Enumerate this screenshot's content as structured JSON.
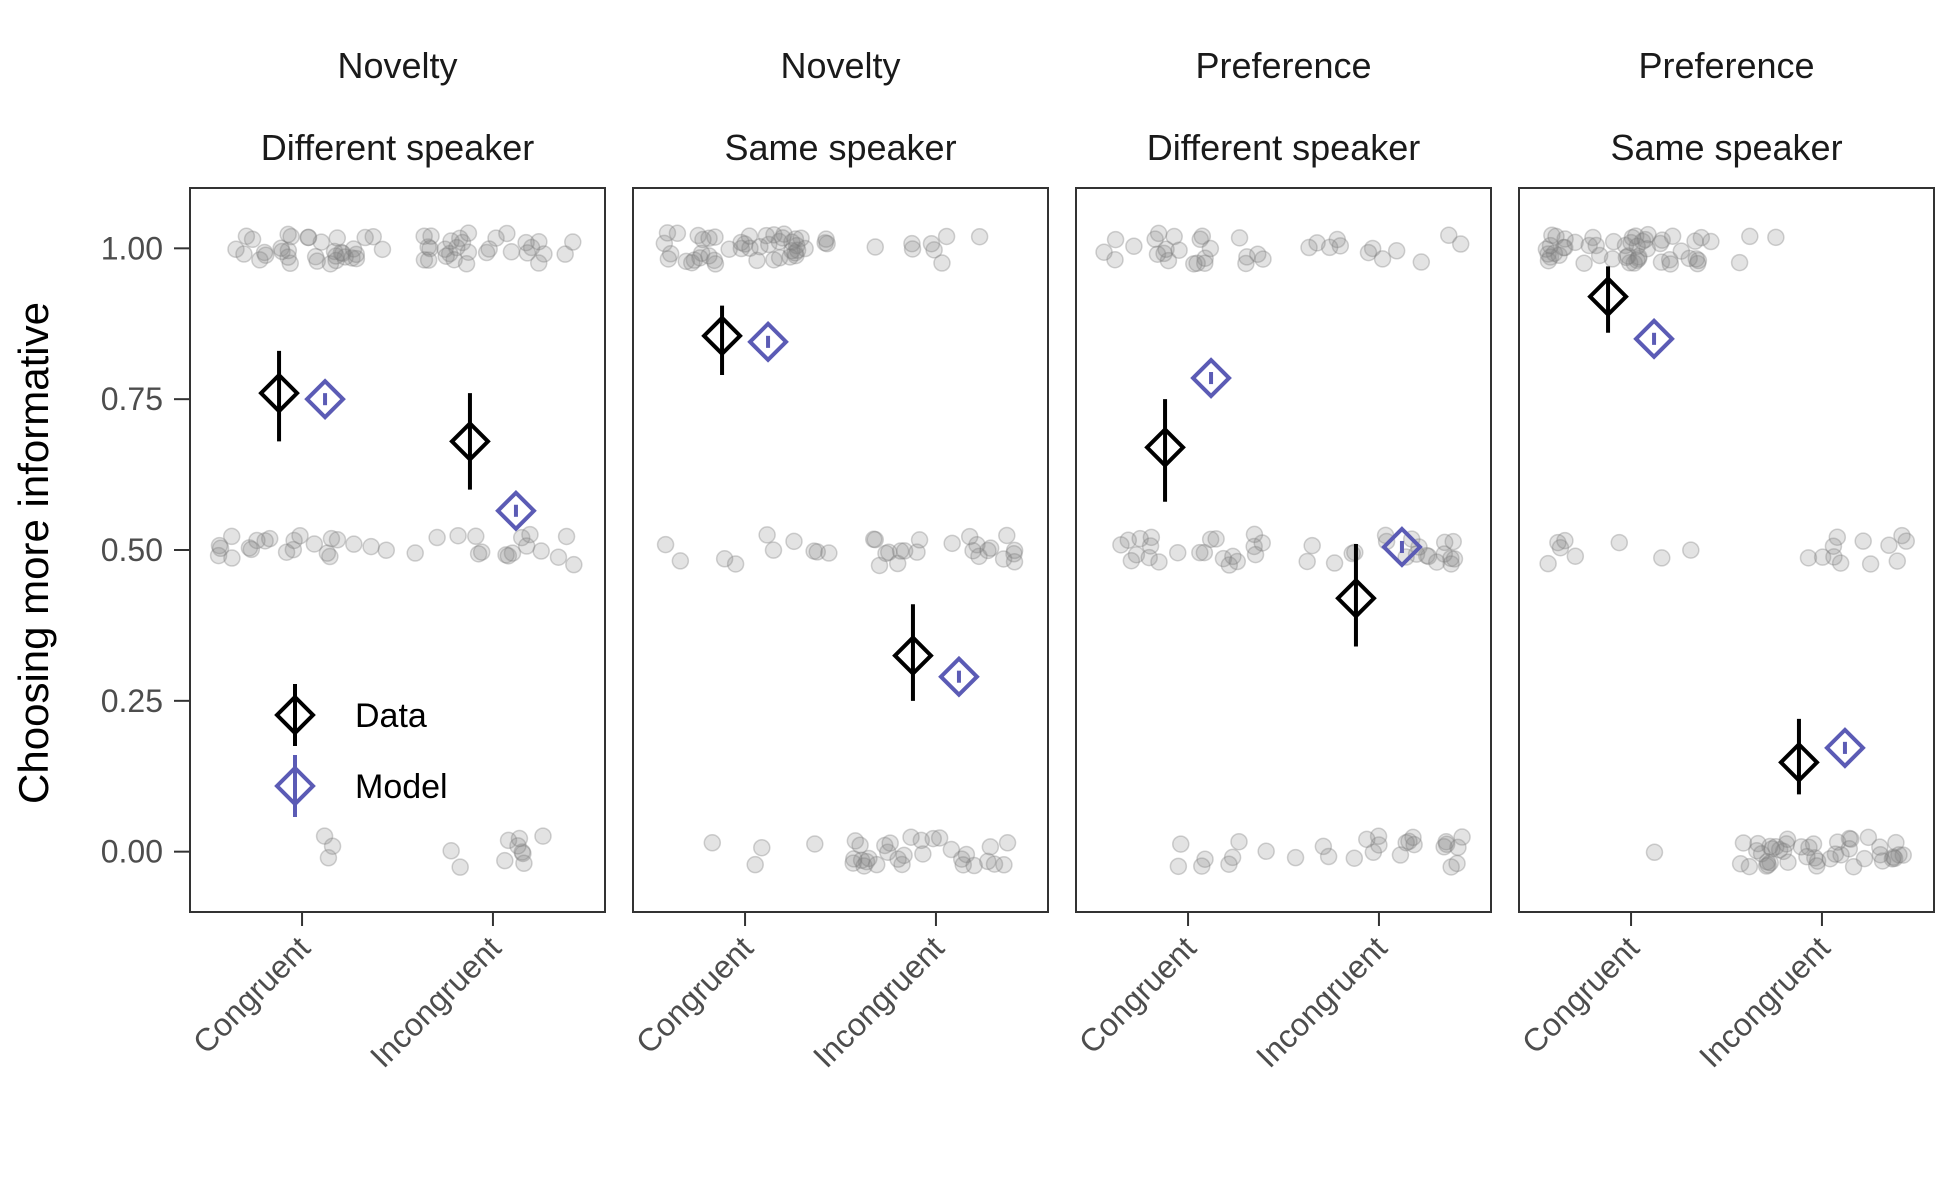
{
  "chart_data": {
    "type": "scatter",
    "ylabel": "Choosing more informative",
    "xlabel": "",
    "ylim": [
      -0.1,
      1.1
    ],
    "y_ticks": [
      "0.00",
      "0.25",
      "0.50",
      "0.75",
      "1.00"
    ],
    "categories": [
      "Congruent",
      "Incongruent"
    ],
    "legend": {
      "entries": [
        "Data",
        "Model"
      ],
      "placement": "bottom-left of first panel"
    },
    "colors": {
      "data": "#000000",
      "model": "#5b5bb5",
      "points": "#7f7f7f"
    },
    "panels": [
      {
        "facet_row1": "Novelty",
        "facet_row2": "Different speaker",
        "Data": {
          "mean": [
            0.76,
            0.68
          ],
          "lower": [
            0.68,
            0.6
          ],
          "upper": [
            0.83,
            0.76
          ]
        },
        "Model": {
          "mean": [
            0.75,
            0.565
          ],
          "lower": [
            0.74,
            0.555
          ],
          "upper": [
            0.76,
            0.575
          ]
        },
        "points": {
          "Congruent": {
            "0": 3,
            "0.5": 22,
            "1": 34
          },
          "Incongruent": {
            "0": 10,
            "0.5": 16,
            "1": 30
          }
        }
      },
      {
        "facet_row1": "Novelty",
        "facet_row2": "Same speaker",
        "Data": {
          "mean": [
            0.855,
            0.325
          ],
          "lower": [
            0.79,
            0.25
          ],
          "upper": [
            0.905,
            0.41
          ]
        },
        "Model": {
          "mean": [
            0.845,
            0.29
          ],
          "lower": [
            0.835,
            0.28
          ],
          "upper": [
            0.855,
            0.3
          ]
        },
        "points": {
          "Congruent": {
            "0": 4,
            "0.5": 10,
            "1": 46
          },
          "Incongruent": {
            "0": 30,
            "0.5": 22,
            "1": 8
          }
        }
      },
      {
        "facet_row1": "Preference",
        "facet_row2": "Different speaker",
        "Data": {
          "mean": [
            0.67,
            0.42
          ],
          "lower": [
            0.58,
            0.34
          ],
          "upper": [
            0.75,
            0.51
          ]
        },
        "Model": {
          "mean": [
            0.785,
            0.505
          ],
          "lower": [
            0.775,
            0.495
          ],
          "upper": [
            0.795,
            0.515
          ]
        },
        "points": {
          "Congruent": {
            "0": 8,
            "0.5": 22,
            "1": 24
          },
          "Incongruent": {
            "0": 20,
            "0.5": 20,
            "1": 12
          }
        }
      },
      {
        "facet_row1": "Preference",
        "facet_row2": "Same speaker",
        "Data": {
          "mean": [
            0.92,
            0.148
          ],
          "lower": [
            0.86,
            0.095
          ],
          "upper": [
            0.97,
            0.22
          ]
        },
        "Model": {
          "mean": [
            0.85,
            0.172
          ],
          "lower": [
            0.84,
            0.162
          ],
          "upper": [
            0.86,
            0.182
          ]
        },
        "points": {
          "Congruent": {
            "0": 1,
            "0.5": 8,
            "1": 50
          },
          "Incongruent": {
            "0": 44,
            "0.5": 12,
            "1": 3
          }
        }
      }
    ]
  }
}
